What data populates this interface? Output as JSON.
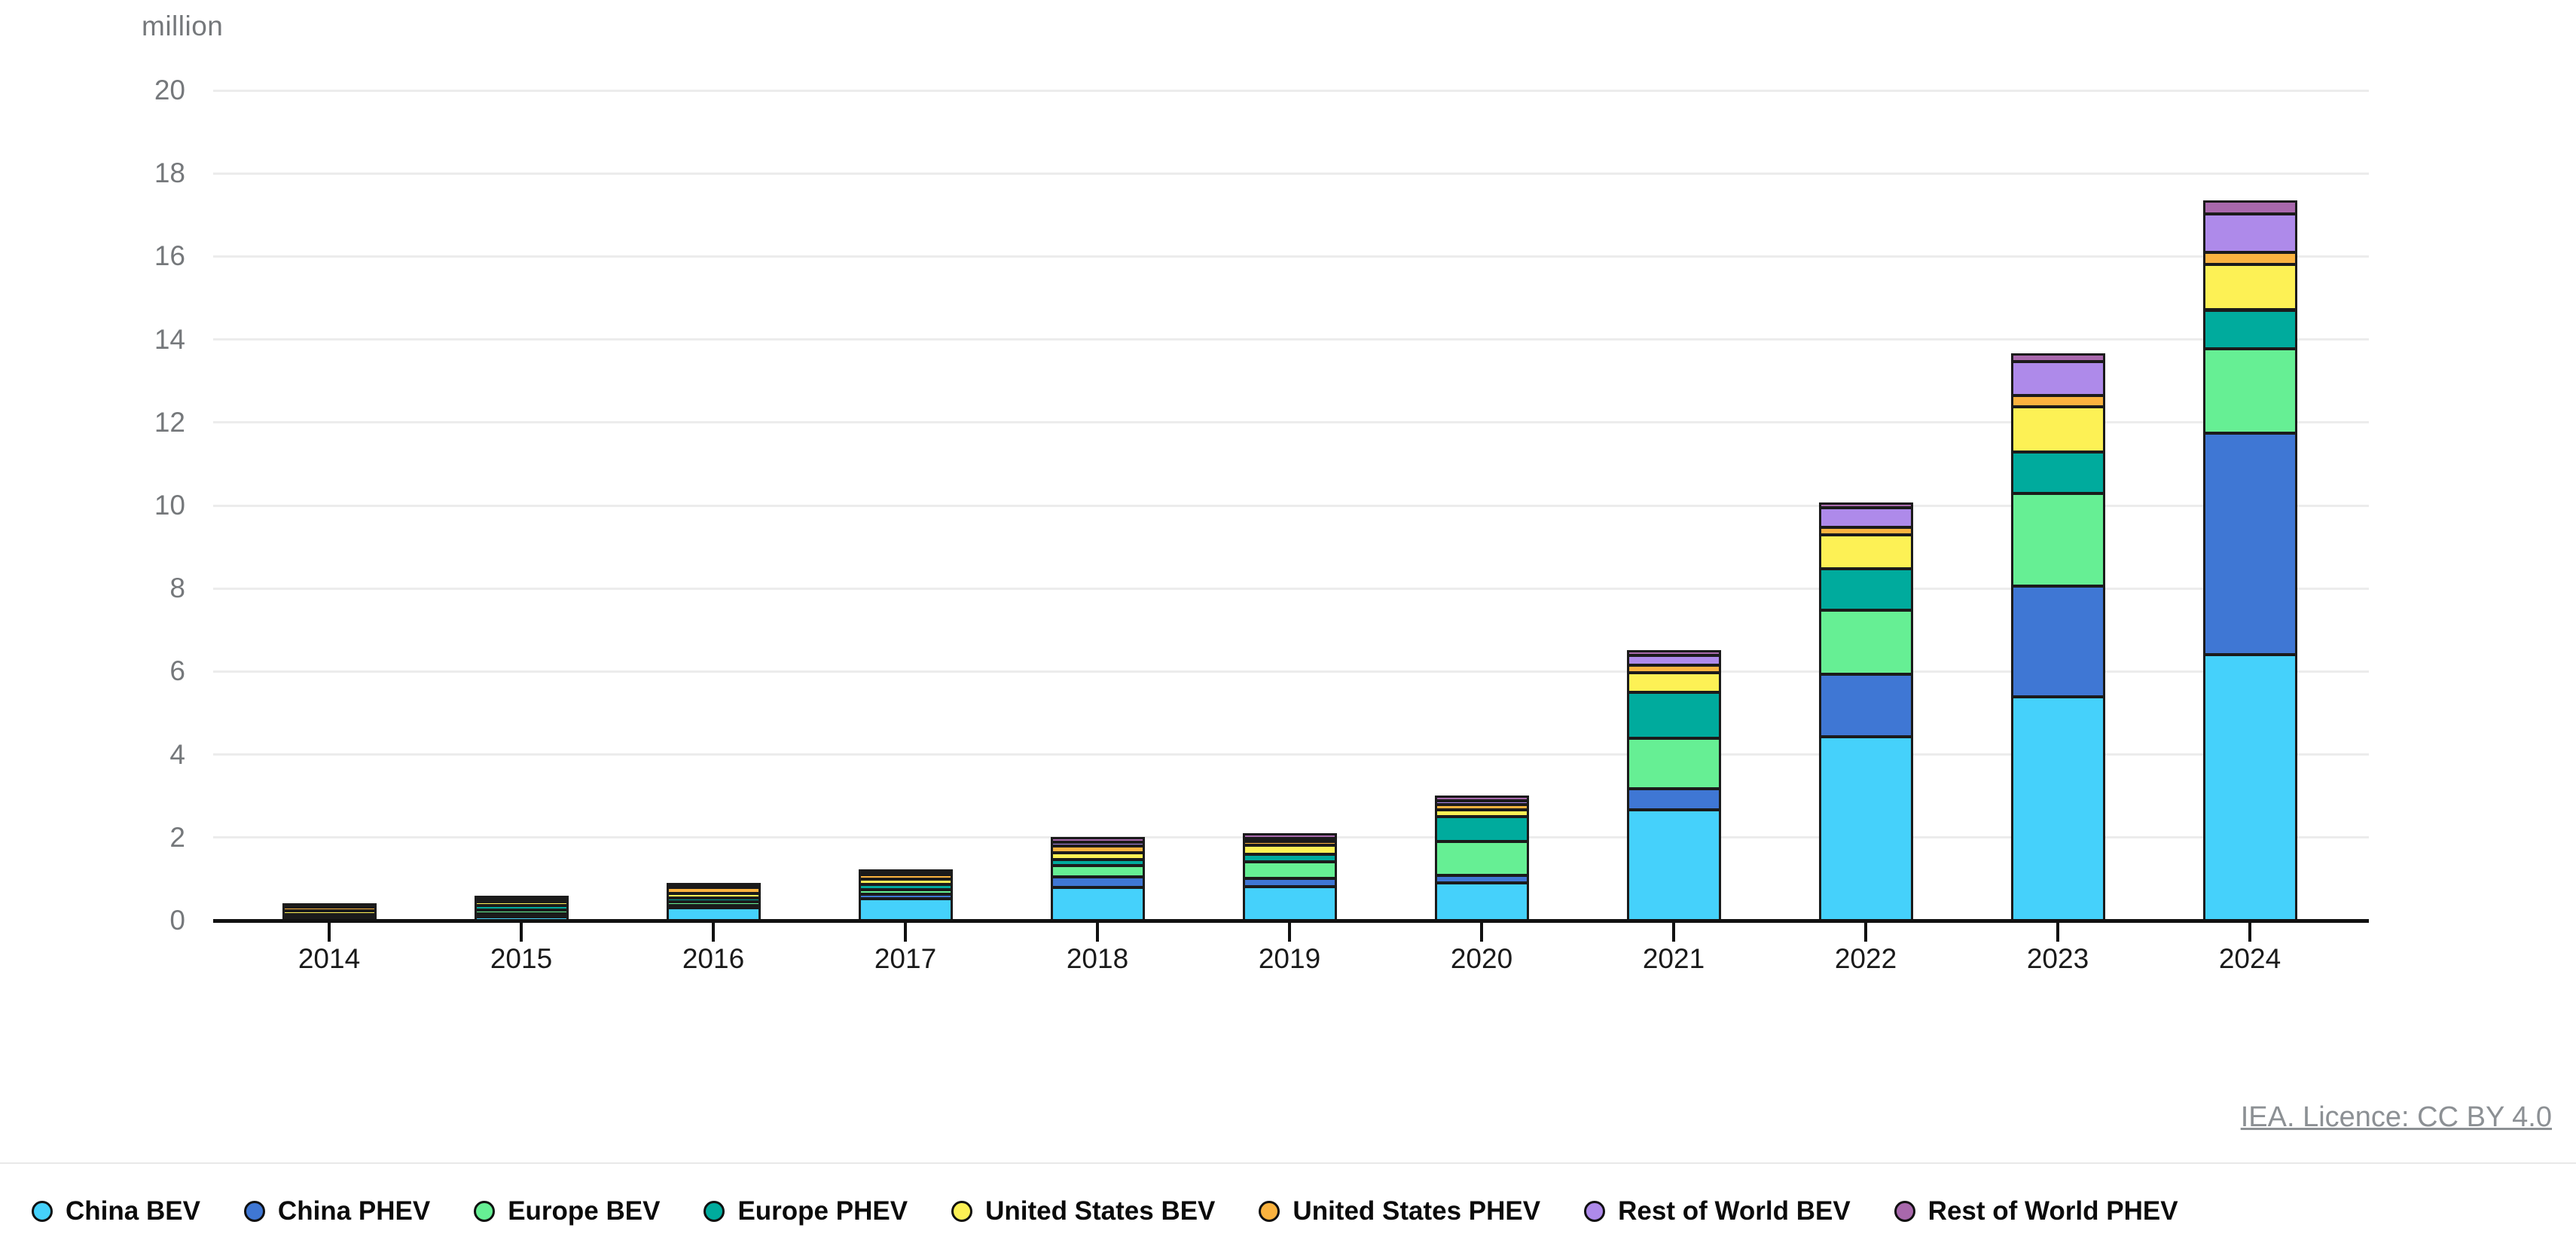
{
  "chart_data": {
    "type": "bar",
    "stacked": true,
    "title": "",
    "unit_label": "million",
    "categories": [
      "2014",
      "2015",
      "2016",
      "2017",
      "2018",
      "2019",
      "2020",
      "2021",
      "2022",
      "2023",
      "2024"
    ],
    "series": [
      {
        "name": "China BEV",
        "color": "#45D1FB",
        "values": [
          0.04,
          0.1,
          0.3,
          0.52,
          0.8,
          0.82,
          0.91,
          2.67,
          4.42,
          5.39,
          6.41
        ]
      },
      {
        "name": "China PHEV",
        "color": "#3F77D4",
        "values": [
          0.02,
          0.07,
          0.07,
          0.12,
          0.25,
          0.2,
          0.18,
          0.5,
          1.51,
          2.66,
          5.33
        ]
      },
      {
        "name": "Europe BEV",
        "color": "#66EF94",
        "values": [
          0.07,
          0.09,
          0.09,
          0.1,
          0.27,
          0.4,
          0.82,
          1.22,
          1.55,
          2.24,
          2.03
        ]
      },
      {
        "name": "Europe PHEV",
        "color": "#00AB9D",
        "values": [
          0.02,
          0.1,
          0.09,
          0.14,
          0.15,
          0.18,
          0.59,
          1.11,
          1.0,
          1.0,
          0.94
        ]
      },
      {
        "name": "United States BEV",
        "color": "#FDF155",
        "values": [
          0.08,
          0.1,
          0.1,
          0.12,
          0.16,
          0.22,
          0.17,
          0.48,
          0.81,
          1.09,
          1.09
        ]
      },
      {
        "name": "United States PHEV",
        "color": "#FBB33F",
        "values": [
          0.09,
          0.03,
          0.14,
          0.1,
          0.17,
          0.08,
          0.13,
          0.18,
          0.18,
          0.27,
          0.3
        ]
      },
      {
        "name": "Rest of World BEV",
        "color": "#AE8AEA",
        "values": [
          0.01,
          0.01,
          0.02,
          0.05,
          0.08,
          0.07,
          0.08,
          0.23,
          0.47,
          0.82,
          0.93
        ]
      },
      {
        "name": "Rest of World PHEV",
        "color": "#A868AC",
        "values": [
          0.01,
          0.01,
          0.02,
          0.04,
          0.12,
          0.12,
          0.12,
          0.11,
          0.12,
          0.18,
          0.3
        ]
      }
    ],
    "ylim": [
      0,
      20
    ],
    "ytick_step": 2,
    "grid": true,
    "legend_position": "bottom",
    "axis_color": "#111111",
    "grid_color": "#ececec",
    "tick_label_color": "#75787b"
  },
  "footer": {
    "source_link": "IEA. Licence: CC BY 4.0"
  }
}
